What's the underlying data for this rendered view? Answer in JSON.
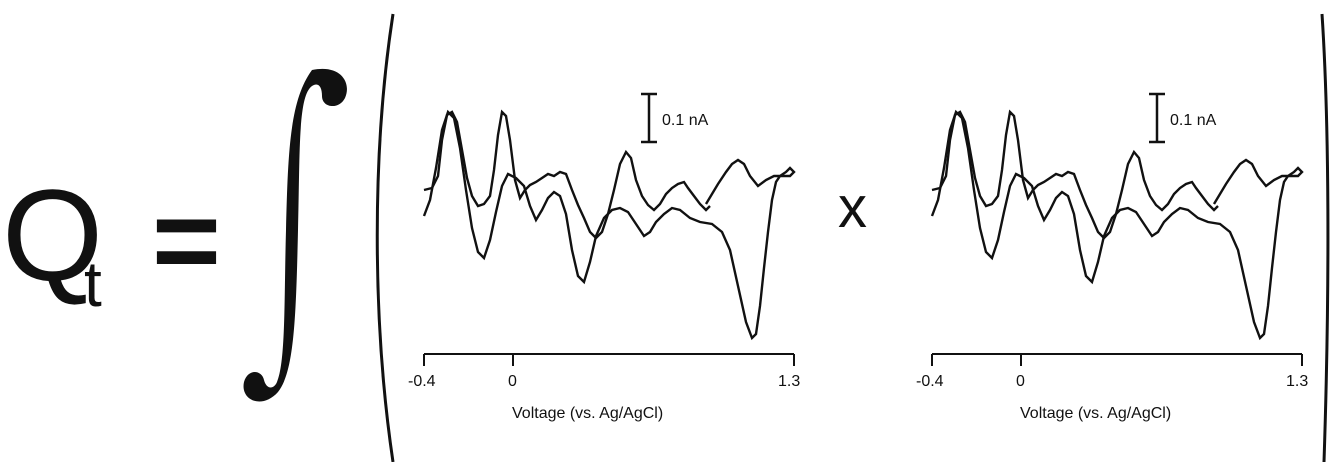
{
  "equation": {
    "lhs_symbol": "Q",
    "lhs_subscript": "t",
    "equals": "=",
    "operator": "x"
  },
  "panels": [
    {
      "id": "left",
      "x_ticks": [
        "-0.4",
        "0",
        "1.3"
      ],
      "x_label": "Voltage (vs. Ag/AgCl)",
      "scale_bar_label": "0.1 nA"
    },
    {
      "id": "right",
      "x_ticks": [
        "-0.4",
        "0",
        "1.3"
      ],
      "x_label": "Voltage (vs. Ag/AgCl)",
      "scale_bar_label": "0.1 nA"
    }
  ],
  "chart_data": {
    "type": "line",
    "x_range": [
      -0.4,
      1.3
    ],
    "note_units": "current shown via 0.1 nA scale bar"
  }
}
